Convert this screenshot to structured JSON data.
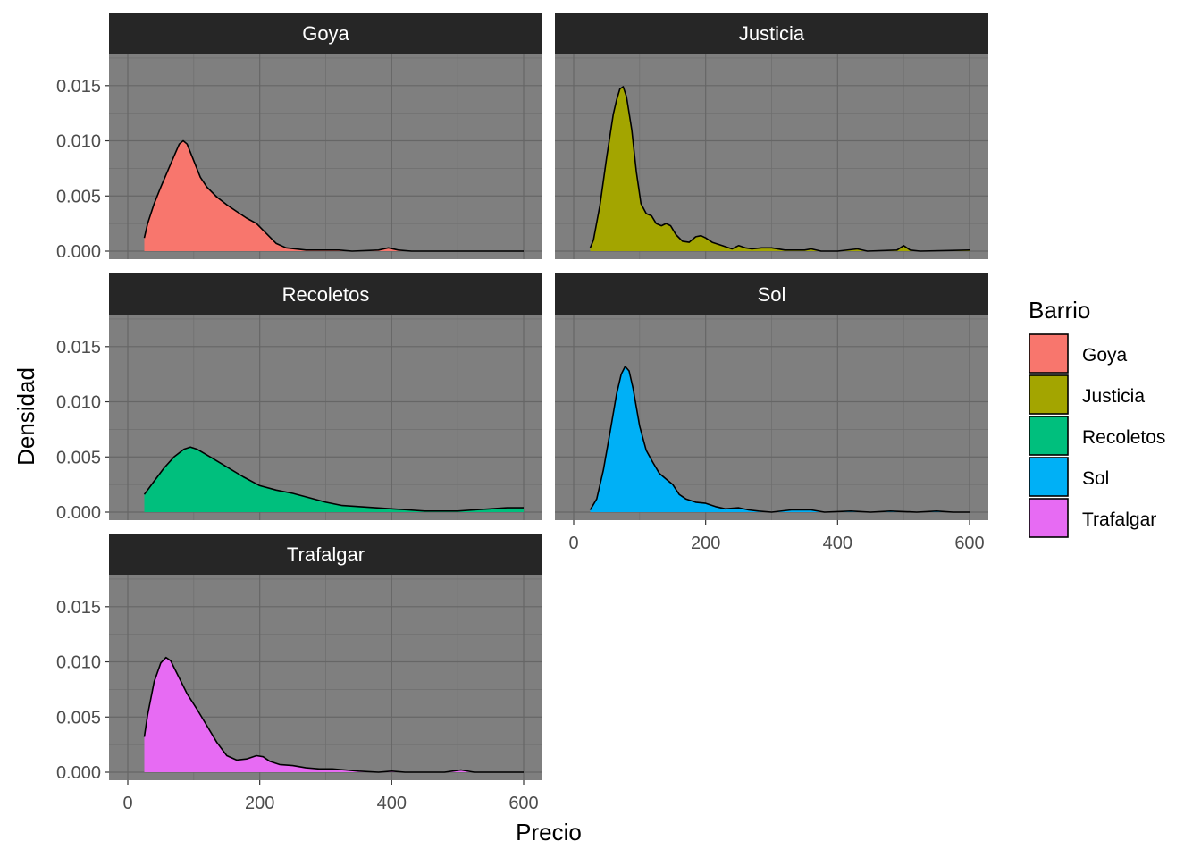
{
  "chart_data": {
    "type": "area",
    "subtype": "faceted-density",
    "x_label": "Precio",
    "y_label": "Densidad",
    "xlim": [
      0,
      600
    ],
    "ylim": [
      0,
      0.015
    ],
    "x_ticks": [
      0,
      200,
      400,
      600
    ],
    "x_tick_labels": [
      "0",
      "200",
      "400",
      "600"
    ],
    "y_ticks": [
      0,
      0.005,
      0.01,
      0.015
    ],
    "y_tick_labels": [
      "0.000",
      "0.005",
      "0.010",
      "0.015"
    ],
    "legend": {
      "title": "Barrio",
      "entries": [
        {
          "label": "Goya",
          "color": "#F8766D"
        },
        {
          "label": "Justicia",
          "color": "#A3A500"
        },
        {
          "label": "Recoletos",
          "color": "#00BF7D"
        },
        {
          "label": "Sol",
          "color": "#00B0F6"
        },
        {
          "label": "Trafalgar",
          "color": "#E76BF3"
        }
      ]
    },
    "panels": [
      {
        "name": "Goya",
        "color": "#F8766D",
        "points": [
          [
            25,
            0.0012
          ],
          [
            30,
            0.0025
          ],
          [
            40,
            0.0043
          ],
          [
            50,
            0.0058
          ],
          [
            60,
            0.0072
          ],
          [
            70,
            0.0086
          ],
          [
            78,
            0.0097
          ],
          [
            84,
            0.01
          ],
          [
            90,
            0.0097
          ],
          [
            100,
            0.0082
          ],
          [
            110,
            0.0067
          ],
          [
            120,
            0.0058
          ],
          [
            135,
            0.0049
          ],
          [
            150,
            0.0042
          ],
          [
            165,
            0.0036
          ],
          [
            180,
            0.003
          ],
          [
            195,
            0.0025
          ],
          [
            210,
            0.0016
          ],
          [
            225,
            0.0007
          ],
          [
            240,
            0.0003
          ],
          [
            270,
            0.0001
          ],
          [
            300,
            0.0001
          ],
          [
            320,
            0.0001
          ],
          [
            340,
            0.0
          ],
          [
            380,
            0.0001
          ],
          [
            395,
            0.0003
          ],
          [
            410,
            0.0001
          ],
          [
            430,
            0.0
          ],
          [
            600,
            0.0
          ]
        ]
      },
      {
        "name": "Justicia",
        "color": "#A3A500",
        "points": [
          [
            25,
            0.0003
          ],
          [
            30,
            0.001
          ],
          [
            40,
            0.0042
          ],
          [
            50,
            0.0085
          ],
          [
            60,
            0.0124
          ],
          [
            65,
            0.0137
          ],
          [
            70,
            0.0147
          ],
          [
            75,
            0.0149
          ],
          [
            80,
            0.014
          ],
          [
            88,
            0.011
          ],
          [
            95,
            0.0072
          ],
          [
            102,
            0.0043
          ],
          [
            110,
            0.0034
          ],
          [
            118,
            0.0032
          ],
          [
            125,
            0.0025
          ],
          [
            133,
            0.0023
          ],
          [
            140,
            0.0025
          ],
          [
            147,
            0.0023
          ],
          [
            155,
            0.0015
          ],
          [
            165,
            0.0009
          ],
          [
            175,
            0.0008
          ],
          [
            185,
            0.0013
          ],
          [
            193,
            0.0014
          ],
          [
            200,
            0.0012
          ],
          [
            210,
            0.0008
          ],
          [
            225,
            0.0005
          ],
          [
            240,
            0.0002
          ],
          [
            250,
            0.0005
          ],
          [
            260,
            0.0003
          ],
          [
            270,
            0.0002
          ],
          [
            285,
            0.0003
          ],
          [
            300,
            0.0003
          ],
          [
            320,
            0.0001
          ],
          [
            350,
            0.0001
          ],
          [
            360,
            0.0002
          ],
          [
            375,
            0.0
          ],
          [
            400,
            0.0
          ],
          [
            430,
            0.0002
          ],
          [
            445,
            0.0
          ],
          [
            490,
            0.0001
          ],
          [
            500,
            0.0005
          ],
          [
            510,
            0.0001
          ],
          [
            525,
            0.0
          ],
          [
            600,
            0.0001
          ]
        ]
      },
      {
        "name": "Recoletos",
        "color": "#00BF7D",
        "points": [
          [
            25,
            0.0016
          ],
          [
            40,
            0.0028
          ],
          [
            55,
            0.004
          ],
          [
            70,
            0.005
          ],
          [
            85,
            0.0057
          ],
          [
            95,
            0.0059
          ],
          [
            105,
            0.0057
          ],
          [
            125,
            0.005
          ],
          [
            150,
            0.0041
          ],
          [
            175,
            0.0032
          ],
          [
            200,
            0.0024
          ],
          [
            225,
            0.002
          ],
          [
            250,
            0.0017
          ],
          [
            275,
            0.0013
          ],
          [
            300,
            0.0009
          ],
          [
            325,
            0.0006
          ],
          [
            350,
            0.0005
          ],
          [
            375,
            0.0004
          ],
          [
            400,
            0.0003
          ],
          [
            425,
            0.0002
          ],
          [
            450,
            0.0001
          ],
          [
            475,
            0.0001
          ],
          [
            500,
            0.0001
          ],
          [
            525,
            0.0002
          ],
          [
            550,
            0.0003
          ],
          [
            575,
            0.0004
          ],
          [
            600,
            0.0004
          ]
        ]
      },
      {
        "name": "Sol",
        "color": "#00B0F6",
        "points": [
          [
            25,
            0.0002
          ],
          [
            35,
            0.0012
          ],
          [
            45,
            0.0038
          ],
          [
            55,
            0.0072
          ],
          [
            65,
            0.0107
          ],
          [
            72,
            0.0125
          ],
          [
            78,
            0.0132
          ],
          [
            84,
            0.0128
          ],
          [
            90,
            0.0112
          ],
          [
            100,
            0.0078
          ],
          [
            110,
            0.0056
          ],
          [
            120,
            0.0045
          ],
          [
            130,
            0.0035
          ],
          [
            140,
            0.003
          ],
          [
            150,
            0.0025
          ],
          [
            160,
            0.0016
          ],
          [
            170,
            0.0012
          ],
          [
            185,
            0.0009
          ],
          [
            200,
            0.0008
          ],
          [
            215,
            0.0005
          ],
          [
            230,
            0.0003
          ],
          [
            250,
            0.0004
          ],
          [
            265,
            0.0002
          ],
          [
            280,
            0.0001
          ],
          [
            300,
            0.0
          ],
          [
            330,
            0.0002
          ],
          [
            360,
            0.0002
          ],
          [
            380,
            0.0
          ],
          [
            420,
            0.0001
          ],
          [
            450,
            0.0
          ],
          [
            480,
            0.0001
          ],
          [
            520,
            0.0
          ],
          [
            550,
            0.0001
          ],
          [
            575,
            0.0
          ],
          [
            600,
            0.0
          ]
        ]
      },
      {
        "name": "Trafalgar",
        "color": "#E76BF3",
        "points": [
          [
            25,
            0.0032
          ],
          [
            30,
            0.0052
          ],
          [
            40,
            0.0082
          ],
          [
            50,
            0.0099
          ],
          [
            58,
            0.0104
          ],
          [
            65,
            0.0101
          ],
          [
            75,
            0.0089
          ],
          [
            90,
            0.0071
          ],
          [
            105,
            0.0057
          ],
          [
            120,
            0.0042
          ],
          [
            135,
            0.0027
          ],
          [
            150,
            0.0015
          ],
          [
            165,
            0.0011
          ],
          [
            180,
            0.0012
          ],
          [
            195,
            0.0015
          ],
          [
            205,
            0.0014
          ],
          [
            215,
            0.001
          ],
          [
            230,
            0.0007
          ],
          [
            250,
            0.0006
          ],
          [
            270,
            0.0004
          ],
          [
            290,
            0.0003
          ],
          [
            310,
            0.0003
          ],
          [
            330,
            0.0002
          ],
          [
            350,
            0.0001
          ],
          [
            380,
            0.0
          ],
          [
            400,
            0.0001
          ],
          [
            420,
            0.0
          ],
          [
            480,
            0.0
          ],
          [
            505,
            0.0002
          ],
          [
            525,
            0.0
          ],
          [
            600,
            0.0
          ]
        ]
      }
    ]
  }
}
